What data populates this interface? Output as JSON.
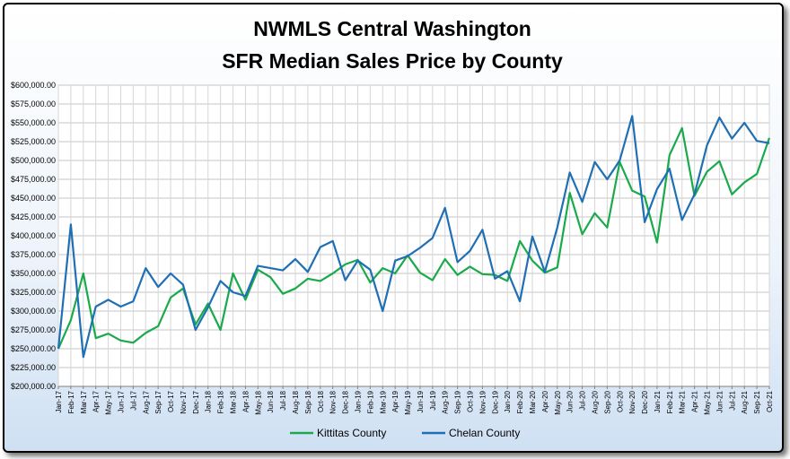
{
  "chart_data": {
    "type": "line",
    "title": [
      "NWMLS Central Washington",
      "SFR Median Sales Price by County"
    ],
    "xlabel": "",
    "ylabel": "",
    "ylim": [
      200000,
      600000
    ],
    "y_ticks": [
      "$200,000.00",
      "$225,000.00",
      "$250,000.00",
      "$275,000.00",
      "$300,000.00",
      "$325,000.00",
      "$350,000.00",
      "$375,000.00",
      "$400,000.00",
      "$425,000.00",
      "$450,000.00",
      "$475,000.00",
      "$500,000.00",
      "$525,000.00",
      "$550,000.00",
      "$575,000.00",
      "$600,000.00"
    ],
    "grid": true,
    "legend": "bottom",
    "categories": [
      "Jan-17",
      "Feb-17",
      "Mar-17",
      "Apr-17",
      "May-17",
      "Jun-17",
      "Jul-17",
      "Aug-17",
      "Sep-17",
      "Oct-17",
      "Nov-17",
      "Dec-17",
      "Jan-18",
      "Feb-18",
      "Mar-18",
      "Apr-18",
      "May-18",
      "Jun-18",
      "Jul-18",
      "Aug-18",
      "Sep-18",
      "Oct-18",
      "Nov-18",
      "Dec-18",
      "Jan-19",
      "Feb-19",
      "Mar-19",
      "Apr-19",
      "May-19",
      "Jun-19",
      "Jul-19",
      "Aug-19",
      "Sep-19",
      "Oct-19",
      "Nov-19",
      "Dec-19",
      "Jan-20",
      "Feb-20",
      "Mar-20",
      "Apr-20",
      "May-20",
      "Jun-20",
      "Jul-20",
      "Aug-20",
      "Sep-20",
      "Oct-20",
      "Nov-20",
      "Dec-20",
      "Jan-21",
      "Feb-21",
      "Mar-21",
      "Apr-21",
      "May-21",
      "Jun-21",
      "Jul-21",
      "Aug-21",
      "Sep-21",
      "Oct-21"
    ],
    "series": [
      {
        "name": "Kittitas County",
        "color": "#1aaa4b",
        "values": [
          250000,
          288000,
          350000,
          264000,
          270000,
          261000,
          258000,
          271000,
          280000,
          318000,
          330000,
          282000,
          310000,
          275000,
          350000,
          315000,
          355000,
          345000,
          323000,
          330000,
          343000,
          340000,
          350000,
          362000,
          368000,
          338000,
          357000,
          350000,
          374000,
          351000,
          341000,
          369000,
          348000,
          359000,
          349000,
          348000,
          340000,
          393000,
          367000,
          351000,
          358000,
          457000,
          402000,
          430000,
          411000,
          498000,
          460000,
          452000,
          391000,
          507000,
          543000,
          453000,
          485000,
          499000,
          455000,
          471000,
          482000,
          530000
        ]
      },
      {
        "name": "Chelan County",
        "color": "#1f6fb4",
        "values": [
          250000,
          415000,
          239000,
          306000,
          315000,
          306000,
          313000,
          357000,
          332000,
          350000,
          335000,
          275000,
          305000,
          340000,
          325000,
          320000,
          360000,
          357000,
          354000,
          369000,
          352000,
          385000,
          393000,
          341000,
          367000,
          355000,
          300000,
          367000,
          373000,
          384000,
          397000,
          437000,
          365000,
          380000,
          408000,
          343000,
          353000,
          313000,
          399000,
          352000,
          411000,
          484000,
          445000,
          498000,
          475000,
          500000,
          559000,
          418000,
          462000,
          489000,
          421000,
          455000,
          520000,
          557000,
          529000,
          550000,
          526000,
          523000
        ]
      }
    ]
  }
}
